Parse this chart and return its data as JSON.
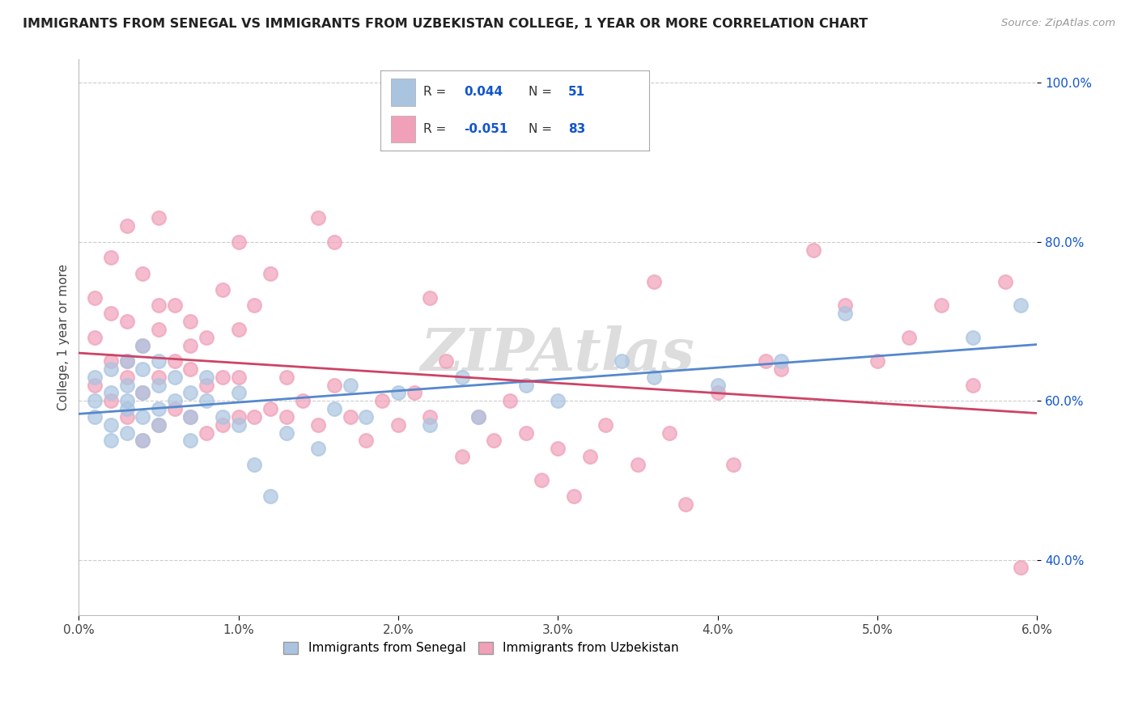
{
  "title": "IMMIGRANTS FROM SENEGAL VS IMMIGRANTS FROM UZBEKISTAN COLLEGE, 1 YEAR OR MORE CORRELATION CHART",
  "source": "Source: ZipAtlas.com",
  "xlabel": "",
  "ylabel": "College, 1 year or more",
  "xlim": [
    0.0,
    0.06
  ],
  "ylim": [
    0.33,
    1.03
  ],
  "xticks": [
    0.0,
    0.01,
    0.02,
    0.03,
    0.04,
    0.05,
    0.06
  ],
  "xticklabels": [
    "0.0%",
    "1.0%",
    "2.0%",
    "3.0%",
    "4.0%",
    "5.0%",
    "6.0%"
  ],
  "yticks": [
    0.4,
    0.6,
    0.8,
    1.0
  ],
  "yticklabels": [
    "40.0%",
    "60.0%",
    "80.0%",
    "100.0%"
  ],
  "senegal_color": "#aac4e0",
  "uzbekistan_color": "#f0a0b8",
  "senegal_R": 0.044,
  "senegal_N": 51,
  "uzbekistan_R": -0.051,
  "uzbekistan_N": 83,
  "legend_label_senegal": "Immigrants from Senegal",
  "legend_label_uzbekistan": "Immigrants from Uzbekistan",
  "r_color": "#1155cc",
  "label_color": "#333333",
  "background_color": "#ffffff",
  "grid_color": "#cccccc",
  "trend_line_blue": "#5588cc",
  "trend_line_pink": "#cc4466",
  "senegal_x": [
    0.001,
    0.001,
    0.001,
    0.002,
    0.002,
    0.002,
    0.002,
    0.003,
    0.003,
    0.003,
    0.003,
    0.003,
    0.004,
    0.004,
    0.004,
    0.004,
    0.004,
    0.005,
    0.005,
    0.005,
    0.005,
    0.006,
    0.006,
    0.007,
    0.007,
    0.007,
    0.008,
    0.008,
    0.009,
    0.01,
    0.01,
    0.011,
    0.012,
    0.013,
    0.015,
    0.016,
    0.017,
    0.018,
    0.02,
    0.022,
    0.024,
    0.025,
    0.028,
    0.03,
    0.034,
    0.036,
    0.04,
    0.044,
    0.048,
    0.056,
    0.059
  ],
  "senegal_y": [
    0.6,
    0.63,
    0.58,
    0.57,
    0.61,
    0.55,
    0.64,
    0.59,
    0.62,
    0.56,
    0.65,
    0.6,
    0.58,
    0.61,
    0.55,
    0.64,
    0.67,
    0.59,
    0.62,
    0.57,
    0.65,
    0.6,
    0.63,
    0.58,
    0.61,
    0.55,
    0.6,
    0.63,
    0.58,
    0.57,
    0.61,
    0.52,
    0.48,
    0.56,
    0.54,
    0.59,
    0.62,
    0.58,
    0.61,
    0.57,
    0.63,
    0.58,
    0.62,
    0.6,
    0.65,
    0.63,
    0.62,
    0.65,
    0.71,
    0.68,
    0.72
  ],
  "uzbekistan_x": [
    0.001,
    0.001,
    0.001,
    0.002,
    0.002,
    0.002,
    0.002,
    0.003,
    0.003,
    0.003,
    0.003,
    0.004,
    0.004,
    0.004,
    0.004,
    0.005,
    0.005,
    0.005,
    0.005,
    0.006,
    0.006,
    0.006,
    0.007,
    0.007,
    0.007,
    0.008,
    0.008,
    0.008,
    0.009,
    0.009,
    0.009,
    0.01,
    0.01,
    0.01,
    0.011,
    0.011,
    0.012,
    0.013,
    0.013,
    0.014,
    0.015,
    0.016,
    0.016,
    0.017,
    0.018,
    0.019,
    0.02,
    0.021,
    0.022,
    0.022,
    0.023,
    0.024,
    0.025,
    0.026,
    0.027,
    0.028,
    0.029,
    0.03,
    0.031,
    0.032,
    0.033,
    0.035,
    0.036,
    0.037,
    0.038,
    0.04,
    0.041,
    0.043,
    0.044,
    0.046,
    0.048,
    0.05,
    0.052,
    0.054,
    0.056,
    0.058,
    0.003,
    0.005,
    0.007,
    0.01,
    0.012,
    0.015,
    0.059
  ],
  "uzbekistan_y": [
    0.62,
    0.68,
    0.73,
    0.6,
    0.65,
    0.71,
    0.78,
    0.58,
    0.63,
    0.7,
    0.82,
    0.55,
    0.61,
    0.67,
    0.76,
    0.57,
    0.63,
    0.69,
    0.83,
    0.59,
    0.65,
    0.72,
    0.58,
    0.64,
    0.7,
    0.56,
    0.62,
    0.68,
    0.57,
    0.63,
    0.74,
    0.58,
    0.63,
    0.69,
    0.58,
    0.72,
    0.59,
    0.58,
    0.63,
    0.6,
    0.57,
    0.8,
    0.62,
    0.58,
    0.55,
    0.6,
    0.57,
    0.61,
    0.58,
    0.73,
    0.65,
    0.53,
    0.58,
    0.55,
    0.6,
    0.56,
    0.5,
    0.54,
    0.48,
    0.53,
    0.57,
    0.52,
    0.75,
    0.56,
    0.47,
    0.61,
    0.52,
    0.65,
    0.64,
    0.79,
    0.72,
    0.65,
    0.68,
    0.72,
    0.62,
    0.75,
    0.65,
    0.72,
    0.67,
    0.8,
    0.76,
    0.83,
    0.39
  ]
}
